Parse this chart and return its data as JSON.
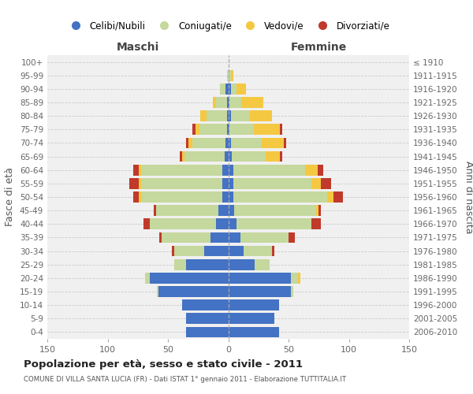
{
  "age_groups": [
    "100+",
    "95-99",
    "90-94",
    "85-89",
    "80-84",
    "75-79",
    "70-74",
    "65-69",
    "60-64",
    "55-59",
    "50-54",
    "45-49",
    "40-44",
    "35-39",
    "30-34",
    "25-29",
    "20-24",
    "15-19",
    "10-14",
    "5-9",
    "0-4"
  ],
  "birth_years": [
    "≤ 1910",
    "1911-1915",
    "1916-1920",
    "1921-1925",
    "1926-1930",
    "1931-1935",
    "1936-1940",
    "1941-1945",
    "1946-1950",
    "1951-1955",
    "1956-1960",
    "1961-1965",
    "1966-1970",
    "1971-1975",
    "1976-1980",
    "1981-1985",
    "1986-1990",
    "1991-1995",
    "1996-2000",
    "2001-2005",
    "2006-2010"
  ],
  "males_celibi": [
    0,
    0,
    2,
    1,
    1,
    1,
    2,
    3,
    5,
    5,
    5,
    8,
    10,
    15,
    20,
    35,
    65,
    58,
    38,
    35,
    35
  ],
  "males_coniugati": [
    0,
    1,
    5,
    9,
    17,
    23,
    28,
    33,
    67,
    67,
    67,
    52,
    55,
    40,
    25,
    10,
    4,
    1,
    0,
    0,
    0
  ],
  "males_vedovi": [
    0,
    0,
    0,
    3,
    5,
    3,
    3,
    2,
    2,
    2,
    2,
    0,
    0,
    0,
    0,
    0,
    0,
    0,
    0,
    0,
    0
  ],
  "males_divorziati": [
    0,
    0,
    0,
    0,
    0,
    3,
    2,
    2,
    5,
    8,
    5,
    2,
    5,
    2,
    2,
    0,
    0,
    0,
    0,
    0,
    0
  ],
  "females_nubili": [
    0,
    0,
    2,
    1,
    2,
    1,
    2,
    3,
    4,
    4,
    4,
    5,
    7,
    10,
    13,
    22,
    52,
    52,
    42,
    38,
    42
  ],
  "females_coniugate": [
    0,
    2,
    5,
    10,
    16,
    20,
    26,
    28,
    60,
    65,
    78,
    68,
    62,
    40,
    23,
    12,
    6,
    2,
    0,
    0,
    0
  ],
  "females_vedove": [
    0,
    2,
    8,
    18,
    18,
    22,
    18,
    12,
    10,
    8,
    5,
    2,
    0,
    0,
    0,
    0,
    2,
    0,
    0,
    0,
    0
  ],
  "females_divorziate": [
    0,
    0,
    0,
    0,
    0,
    2,
    2,
    2,
    5,
    8,
    8,
    2,
    8,
    5,
    2,
    0,
    0,
    0,
    0,
    0,
    0
  ],
  "color_celibi": "#4472C4",
  "color_coniugati": "#C5D89D",
  "color_vedovi": "#F5C842",
  "color_divorziati": "#C0392B",
  "xlim": 150,
  "title": "Popolazione per età, sesso e stato civile - 2011",
  "subtitle": "COMUNE DI VILLA SANTA LUCIA (FR) - Dati ISTAT 1° gennaio 2011 - Elaborazione TUTTITALIA.IT",
  "ylabel_left": "Fasce di età",
  "ylabel_right": "Anni di nascita",
  "label_maschi": "Maschi",
  "label_femmine": "Femmine",
  "legend_labels": [
    "Celibi/Nubili",
    "Coniugati/e",
    "Vedovi/e",
    "Divorziati/e"
  ],
  "bg_color": "#f0f0f0"
}
